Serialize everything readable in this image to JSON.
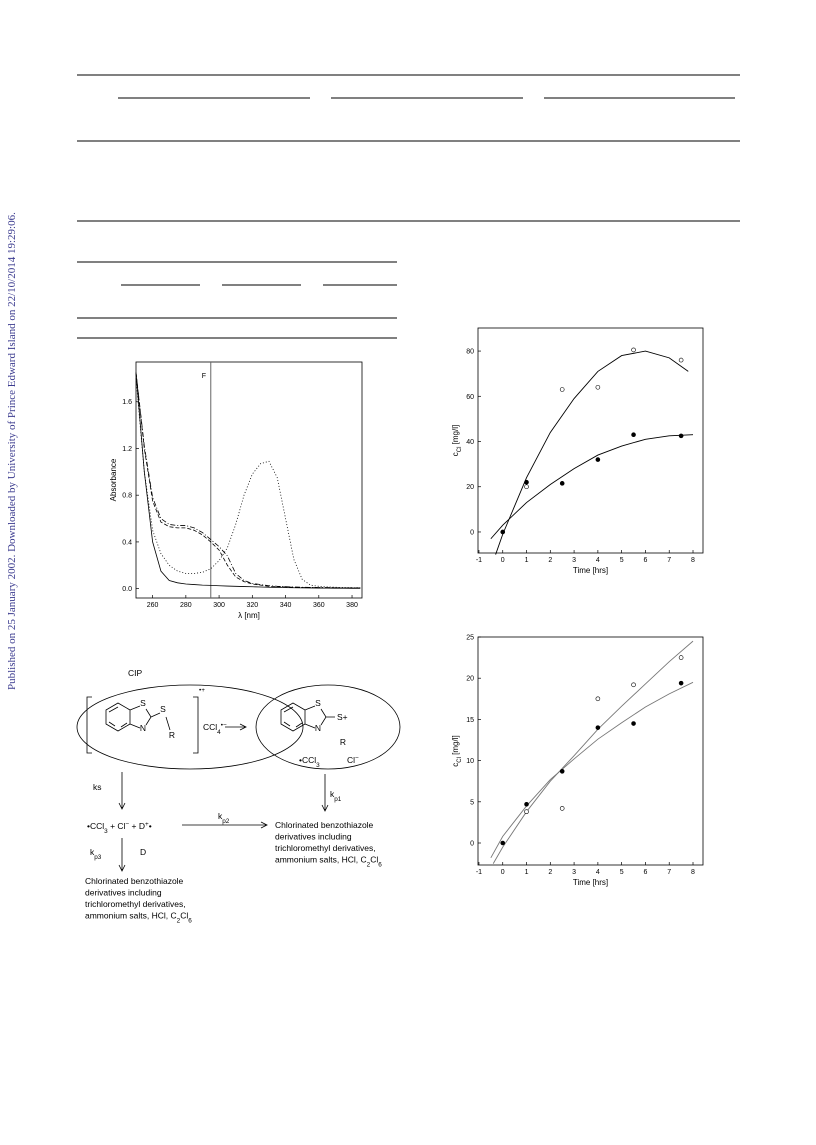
{
  "side_note": "Published on 25 January 2002. Downloaded by University of Prince Edward Island on 22/10/2014 19:29:06.",
  "scheme": {
    "cip_label": "CIP",
    "left_complex": {
      "s_atom": "S",
      "n_atom": "N",
      "r_group": "R",
      "substituent_s": "S",
      "charge": [
        {
          "text": "•+",
          "pos": "sup"
        }
      ],
      "counter_ion": [
        {
          "text": "CCl"
        },
        {
          "text": "4",
          "pos": "sub"
        },
        {
          "text": "•−",
          "pos": "sup"
        }
      ]
    },
    "right_complex": {
      "s_atom": "S",
      "n_atom": "N",
      "s_cation": "S+",
      "r_group": "R",
      "radical": [
        {
          "text": "•CCl"
        },
        {
          "text": "3",
          "pos": "sub"
        }
      ],
      "anion": [
        {
          "text": "Cl"
        },
        {
          "text": "−",
          "pos": "sup"
        }
      ]
    },
    "k_s": "ks",
    "k_p1": [
      {
        "text": "k"
      },
      {
        "text": "p1",
        "pos": "sub"
      }
    ],
    "k_p2": [
      {
        "text": "k"
      },
      {
        "text": "p2",
        "pos": "sub"
      }
    ],
    "k_p3": [
      {
        "text": "k"
      },
      {
        "text": "p3",
        "pos": "sub"
      }
    ],
    "d_label": "D",
    "intermediates": [
      {
        "text": "•CCl"
      },
      {
        "text": "3",
        "pos": "sub"
      },
      {
        "text": " +  Cl"
      },
      {
        "text": "−",
        "pos": "sup"
      },
      {
        "text": " +  D"
      },
      {
        "text": "+",
        "pos": "sup"
      },
      {
        "text": "•"
      }
    ],
    "products_right": [
      "Chlorinated benzothiazole",
      "derivatives including",
      "trichloromethyl derivatives,",
      [
        {
          "text": "ammonium salts, HCl, C"
        },
        {
          "text": "2",
          "pos": "sub"
        },
        {
          "text": "Cl"
        },
        {
          "text": "6",
          "pos": "sub"
        }
      ]
    ],
    "products_left": [
      "Chlorinated benzothiazole",
      "derivatives including",
      "trichloromethyl derivatives,",
      [
        {
          "text": "ammonium salts, HCl, C"
        },
        {
          "text": "2",
          "pos": "sub"
        },
        {
          "text": "Cl"
        },
        {
          "text": "6",
          "pos": "sub"
        }
      ]
    ]
  },
  "chart_data": [
    {
      "type": "line",
      "x_label": "λ [nm]",
      "y_label": "Absorbance",
      "xlim": [
        250,
        386
      ],
      "xticks": [
        260,
        280,
        300,
        320,
        340,
        360,
        380
      ],
      "ylim": [
        -0.08,
        1.94
      ],
      "yticks": [
        {
          "value": 0,
          "label": "0.0"
        },
        0.4,
        0.8,
        1.2,
        1.6
      ],
      "annotations": [
        {
          "text": "F",
          "x": 295
        }
      ],
      "x": [
        250,
        255,
        260,
        265,
        270,
        275,
        280,
        285,
        290,
        295,
        300,
        305,
        310,
        315,
        320,
        325,
        330,
        335,
        340,
        345,
        350,
        355,
        360,
        365,
        370,
        375,
        380,
        385
      ],
      "series": [
        {
          "color": "#000",
          "dash": "solid",
          "values": [
            1.85,
            1.0,
            0.4,
            0.15,
            0.07,
            0.05,
            0.04,
            0.035,
            0.03,
            0.028,
            0.025,
            0.022,
            0.02,
            0.018,
            0.016,
            0.014,
            0.012,
            0.01,
            0.009,
            0.008,
            0.007,
            0.006,
            0.005,
            0.005,
            0.004,
            0.004,
            0.003,
            0.003
          ]
        },
        {
          "color": "#000",
          "dash": "dashed",
          "values": [
            1.85,
            1.2,
            0.75,
            0.57,
            0.53,
            0.52,
            0.52,
            0.5,
            0.46,
            0.4,
            0.33,
            0.2,
            0.1,
            0.06,
            0.04,
            0.03,
            0.02,
            0.018,
            0.015,
            0.012,
            0.01,
            0.01,
            0.008,
            0.008,
            0.007,
            0.006,
            0.006,
            0.005
          ]
        },
        {
          "color": "#000",
          "dash": "dashdot",
          "values": [
            1.85,
            1.22,
            0.78,
            0.6,
            0.55,
            0.54,
            0.54,
            0.52,
            0.48,
            0.42,
            0.36,
            0.28,
            0.13,
            0.07,
            0.045,
            0.035,
            0.025,
            0.02,
            0.017,
            0.014,
            0.012,
            0.011,
            0.01,
            0.009,
            0.008,
            0.007,
            0.007,
            0.006
          ]
        },
        {
          "color": "#000",
          "dash": "dotted",
          "values": [
            1.8,
            1.0,
            0.5,
            0.3,
            0.2,
            0.15,
            0.13,
            0.13,
            0.14,
            0.17,
            0.24,
            0.35,
            0.55,
            0.8,
            0.98,
            1.07,
            1.09,
            0.95,
            0.6,
            0.25,
            0.08,
            0.03,
            0.02,
            0.015,
            0.012,
            0.01,
            0.01,
            0.008
          ]
        }
      ]
    },
    {
      "type": "scatter",
      "x_label": "Time [hrs]",
      "y_label": [
        {
          "text": "c"
        },
        {
          "text": "Cl",
          "pos": "sub"
        },
        {
          "text": " [mg/l]"
        }
      ],
      "xlim": [
        -1.04,
        8.42
      ],
      "xticks": [
        -1,
        0,
        1,
        2,
        3,
        4,
        5,
        6,
        7,
        8
      ],
      "ylim": [
        -9.3,
        90.2
      ],
      "yticks": [
        0,
        20,
        40,
        60,
        80
      ],
      "series": [
        {
          "marker": "open",
          "color": "#000",
          "x": [
            1,
            2.5,
            4,
            5.5,
            7.5
          ],
          "values": [
            20,
            63,
            64,
            80.5,
            76
          ]
        },
        {
          "marker": "filled",
          "color": "#000",
          "x": [
            0,
            1,
            2.5,
            4,
            5.5,
            7.5
          ],
          "values": [
            0,
            22,
            21.5,
            32,
            43,
            42.5
          ]
        }
      ],
      "fits": [
        {
          "color": "#000",
          "x": [
            -0.3,
            0,
            1,
            2,
            3,
            4,
            5,
            6,
            7,
            7.8
          ],
          "values": [
            -10,
            -1,
            24,
            44,
            59,
            71,
            78,
            80,
            77,
            71
          ]
        },
        {
          "color": "#000",
          "x": [
            -0.5,
            0,
            1,
            2,
            3,
            4,
            5,
            6,
            7,
            8
          ],
          "values": [
            -3,
            3,
            13,
            21,
            28,
            34,
            38,
            41,
            42.5,
            43
          ]
        }
      ]
    },
    {
      "type": "scatter",
      "x_label": "Time [hrs]",
      "y_label": [
        {
          "text": "c"
        },
        {
          "text": "Cl",
          "pos": "sub"
        },
        {
          "text": " [mg/l]"
        }
      ],
      "xlim": [
        -1.04,
        8.42
      ],
      "xticks": [
        -1,
        0,
        1,
        2,
        3,
        4,
        5,
        6,
        7,
        8
      ],
      "ylim": [
        -2.67,
        25
      ],
      "yticks": [
        0,
        5,
        10,
        15,
        20,
        25
      ],
      "series": [
        {
          "marker": "open",
          "color": "#000",
          "x": [
            1,
            2.5,
            4,
            5.5,
            7.5
          ],
          "values": [
            3.8,
            4.2,
            17.5,
            19.2,
            22.5
          ]
        },
        {
          "marker": "filled",
          "color": "#000",
          "x": [
            0,
            1,
            2.5,
            4,
            5.5,
            7.5
          ],
          "values": [
            0,
            4.7,
            8.7,
            14,
            14.5,
            19.4
          ]
        }
      ],
      "fits": [
        {
          "color": "#777",
          "x": [
            -0.4,
            0,
            1,
            2,
            3,
            4,
            5,
            6,
            7,
            8
          ],
          "values": [
            -2.5,
            -0.5,
            3.8,
            7.5,
            10.6,
            13.8,
            16.6,
            19.3,
            22,
            24.5
          ]
        },
        {
          "color": "#777",
          "x": [
            -0.5,
            0,
            1,
            2,
            3,
            4,
            5,
            6,
            7,
            8
          ],
          "values": [
            -1.8,
            0.8,
            4.5,
            7.7,
            10.2,
            12.6,
            14.6,
            16.5,
            18.1,
            19.5
          ]
        }
      ]
    }
  ]
}
